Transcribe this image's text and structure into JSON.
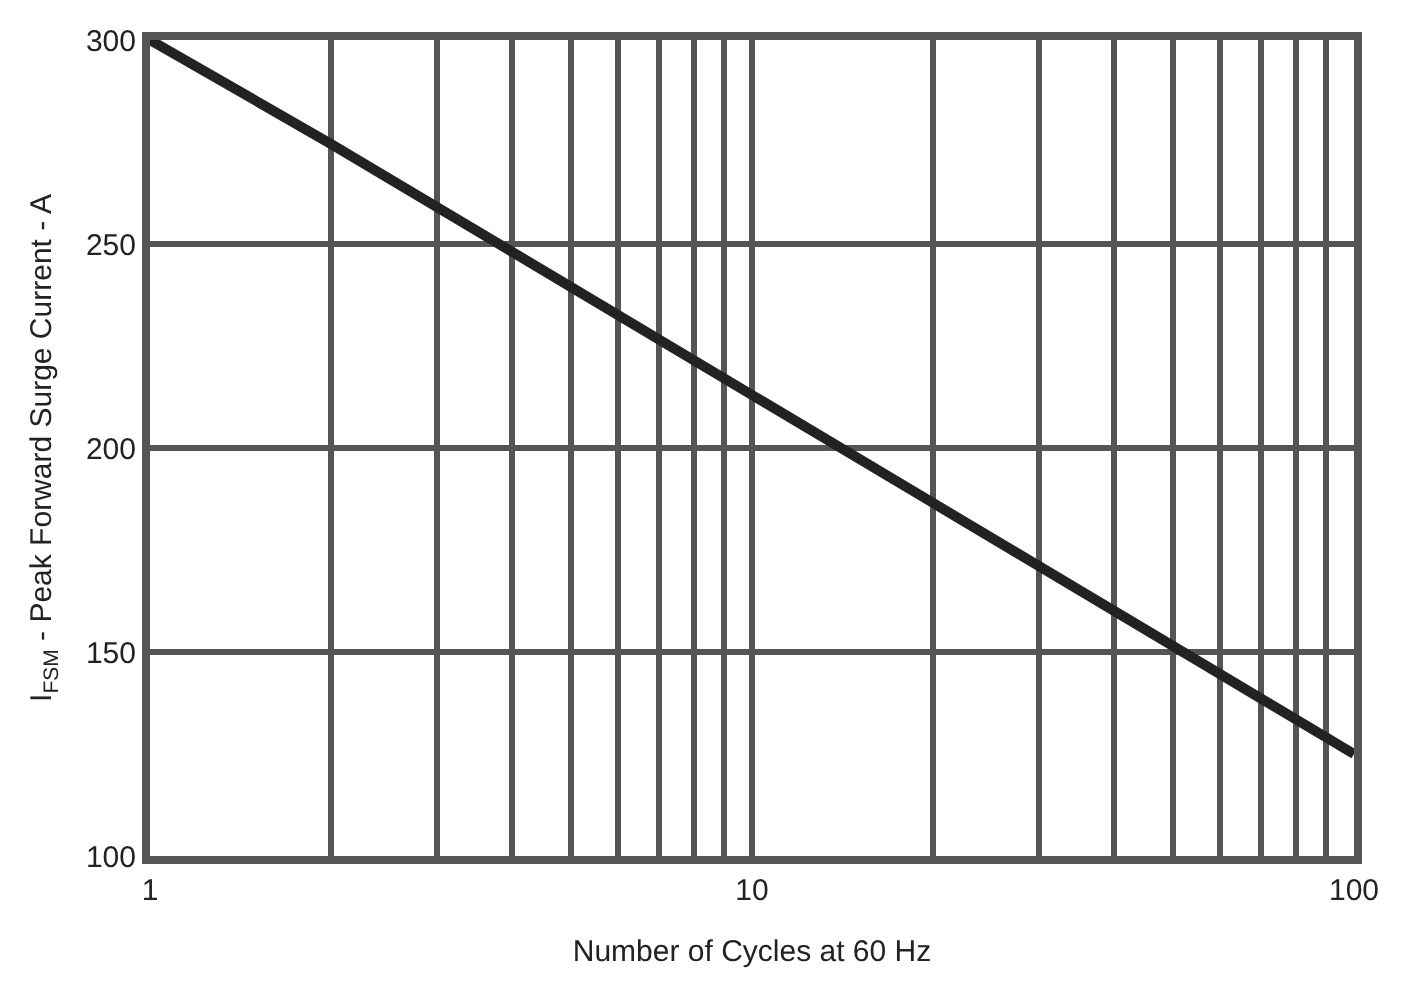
{
  "chart_data": {
    "type": "line",
    "xlabel": "Number of Cycles at 60 Hz",
    "ylabel": "I$_{FSM}$ - Peak Forward Surge Current - A",
    "x": [
      1,
      2,
      5,
      10,
      20,
      50,
      100
    ],
    "series": [
      {
        "color": "#222222",
        "values": [
          300,
          274.5,
          239.5,
          213,
          186.5,
          151.5,
          125
        ]
      }
    ],
    "log": "x",
    "xlim": [
      1,
      100
    ],
    "ylim": [
      100,
      300
    ],
    "xticks": [
      1,
      {
        "value": 2,
        "label": null
      },
      {
        "value": 3,
        "label": null
      },
      {
        "value": 4,
        "label": null
      },
      {
        "value": 5,
        "label": null
      },
      {
        "value": 6,
        "label": null
      },
      {
        "value": 7,
        "label": null
      },
      {
        "value": 8,
        "label": null
      },
      {
        "value": 9,
        "label": null
      },
      10,
      {
        "value": 20,
        "label": null
      },
      {
        "value": 30,
        "label": null
      },
      {
        "value": 40,
        "label": null
      },
      {
        "value": 50,
        "label": null
      },
      {
        "value": 60,
        "label": null
      },
      {
        "value": 70,
        "label": null
      },
      {
        "value": 80,
        "label": null
      },
      {
        "value": 90,
        "label": null
      },
      100
    ],
    "yticks": [
      100,
      150,
      200,
      250,
      300
    ],
    "grid": true,
    "marker": "none",
    "line_style": "solid"
  }
}
